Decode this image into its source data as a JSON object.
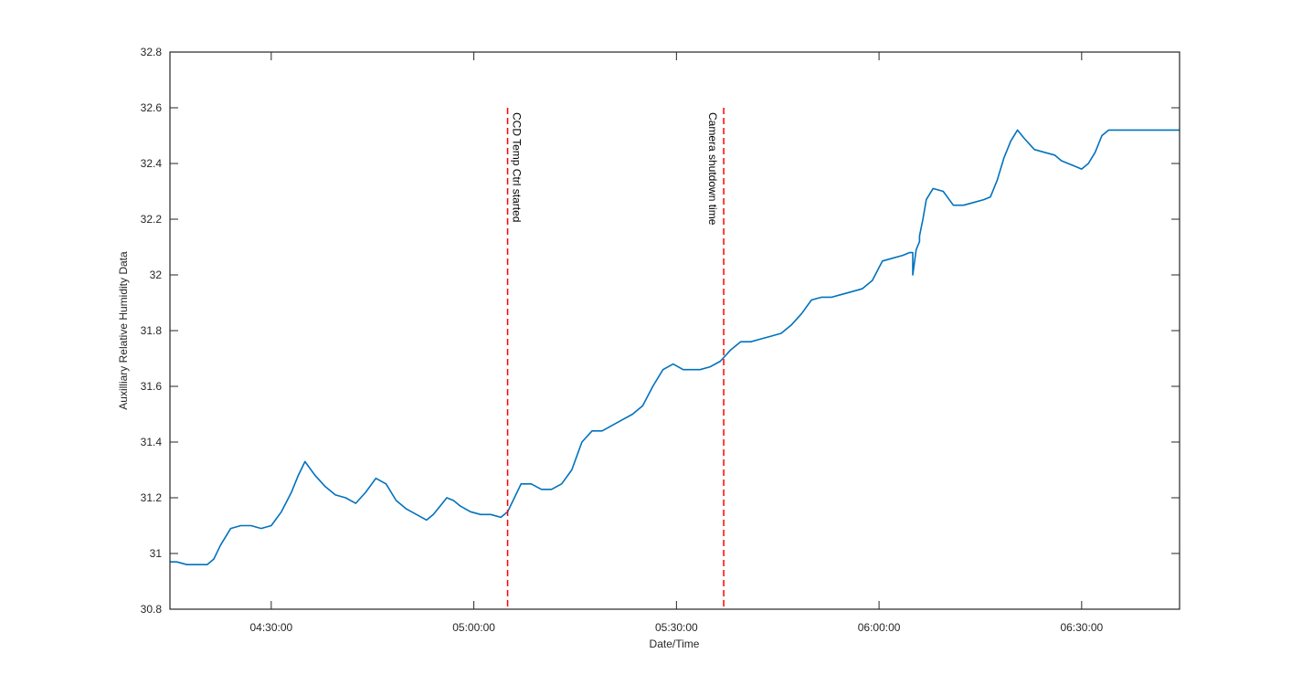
{
  "chart_data": {
    "type": "line",
    "title": "",
    "xlabel": "Date/Time",
    "ylabel": "Auxilliary Relative Humidity Data",
    "xlim": [
      "04:15:00",
      "06:44:30"
    ],
    "ylim": [
      30.8,
      32.8
    ],
    "x_ticks": [
      "04:30:00",
      "05:00:00",
      "05:30:00",
      "06:00:00",
      "06:30:00"
    ],
    "y_ticks": [
      "30.8",
      "31",
      "31.2",
      "31.4",
      "31.6",
      "31.8",
      "32",
      "32.2",
      "32.4",
      "32.6",
      "32.8"
    ],
    "grid": false,
    "legend": "none",
    "colors": {
      "series": "#0072BD",
      "annotation": "#FF0000",
      "axes": "#262626"
    },
    "series": [
      {
        "x": [
          "04:15:00",
          "04:16:00",
          "04:17:30",
          "04:18:30",
          "04:19:30",
          "04:20:30",
          "04:21:30",
          "04:22:30",
          "04:24:00",
          "04:25:30",
          "04:27:00",
          "04:28:30",
          "04:30:00",
          "04:31:30",
          "04:33:00",
          "04:34:00",
          "04:35:00",
          "04:36:30",
          "04:38:00",
          "04:39:30",
          "04:41:00",
          "04:42:30",
          "04:44:00",
          "04:45:30",
          "04:47:00",
          "04:48:30",
          "04:50:00",
          "04:51:30",
          "04:53:00",
          "04:54:00",
          "04:55:00",
          "04:56:00",
          "04:57:00",
          "04:58:00",
          "04:59:30",
          "05:01:00",
          "05:02:30",
          "05:04:00",
          "05:05:00",
          "05:06:00",
          "05:07:00",
          "05:08:30",
          "05:10:00",
          "05:11:30",
          "05:13:00",
          "05:14:30",
          "05:16:00",
          "05:17:30",
          "05:19:00",
          "05:20:30",
          "05:22:00",
          "05:23:30",
          "05:25:00",
          "05:26:30",
          "05:28:00",
          "05:29:30",
          "05:31:00",
          "05:32:30",
          "05:33:30",
          "05:35:00",
          "05:36:30",
          "05:38:00",
          "05:39:30",
          "05:41:00",
          "05:42:30",
          "05:44:00",
          "05:45:30",
          "05:47:00",
          "05:48:30",
          "05:50:00",
          "05:51:30",
          "05:53:00",
          "05:54:30",
          "05:56:00",
          "05:57:30",
          "05:59:00",
          "06:00:30",
          "06:02:00",
          "06:03:30",
          "06:04:30",
          "06:05:00",
          "06:05:00",
          "06:05:30",
          "06:06:00",
          "06:06:00",
          "06:06:30",
          "06:07:00",
          "06:08:00",
          "06:09:30",
          "06:11:00",
          "06:12:30",
          "06:14:00",
          "06:15:30",
          "06:16:30",
          "06:17:30",
          "06:18:30",
          "06:19:30",
          "06:20:30",
          "06:21:30",
          "06:23:00",
          "06:24:30",
          "06:26:00",
          "06:27:00",
          "06:28:00",
          "06:29:00",
          "06:30:00",
          "06:31:00",
          "06:32:00",
          "06:33:00",
          "06:34:00",
          "06:35:30",
          "06:37:00",
          "06:38:30",
          "06:40:00",
          "06:41:00",
          "06:42:00",
          "06:43:00",
          "06:44:00",
          "06:44:30"
        ],
        "y": [
          30.97,
          30.97,
          30.96,
          30.96,
          30.96,
          30.96,
          30.98,
          31.03,
          31.09,
          31.1,
          31.1,
          31.09,
          31.1,
          31.15,
          31.22,
          31.28,
          31.33,
          31.28,
          31.24,
          31.21,
          31.2,
          31.18,
          31.22,
          31.27,
          31.25,
          31.19,
          31.16,
          31.14,
          31.12,
          31.14,
          31.17,
          31.2,
          31.19,
          31.17,
          31.15,
          31.14,
          31.14,
          31.13,
          31.15,
          31.2,
          31.25,
          31.25,
          31.23,
          31.23,
          31.25,
          31.3,
          31.4,
          31.44,
          31.44,
          31.46,
          31.48,
          31.5,
          31.53,
          31.6,
          31.66,
          31.68,
          31.66,
          31.66,
          31.66,
          31.67,
          31.69,
          31.73,
          31.76,
          31.76,
          31.77,
          31.78,
          31.79,
          31.82,
          31.86,
          31.91,
          31.92,
          31.92,
          31.93,
          31.94,
          31.95,
          31.98,
          32.05,
          32.06,
          32.07,
          32.08,
          32.08,
          32.0,
          32.09,
          32.12,
          32.14,
          32.2,
          32.27,
          32.31,
          32.3,
          32.25,
          32.25,
          32.26,
          32.27,
          32.28,
          32.34,
          32.42,
          32.48,
          32.52,
          32.49,
          32.45,
          32.44,
          32.43,
          32.41,
          32.4,
          32.39,
          32.38,
          32.4,
          32.44,
          32.5,
          32.52,
          32.52,
          32.52,
          32.52,
          32.52,
          32.52,
          32.52,
          32.52,
          32.52,
          32.52
        ]
      }
    ],
    "annotations": [
      {
        "x": "05:05:00",
        "label": "CCD Temp Ctrl started"
      },
      {
        "x": "05:37:00",
        "label": "Camera shutdown time"
      }
    ]
  }
}
